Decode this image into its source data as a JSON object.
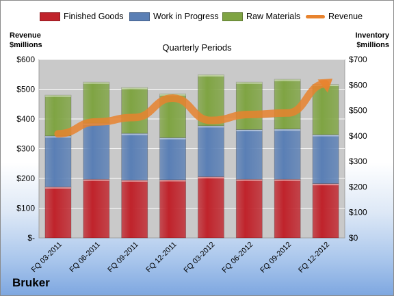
{
  "chart_data": {
    "type": "bar",
    "stacked": true,
    "subtitle": "Quarterly Periods",
    "company": "Bruker",
    "categories": [
      "FQ 03-2011",
      "FQ 06-2011",
      "FQ 09-2011",
      "FQ 12-2011",
      "FQ 03-2012",
      "FQ 06-2012",
      "FQ 09-2012",
      "FQ 12-2012"
    ],
    "series": [
      {
        "name": "Finished Goods",
        "axis": "right",
        "color": "#c0232b",
        "values": [
          200,
          230,
          227,
          228,
          240,
          230,
          230,
          213
        ]
      },
      {
        "name": "Work in Progress",
        "axis": "right",
        "color": "#5a7fb5",
        "values": [
          200,
          220,
          183,
          165,
          200,
          195,
          197,
          192
        ]
      },
      {
        "name": "Raw Materials",
        "axis": "right",
        "color": "#7fa443",
        "values": [
          160,
          161,
          180,
          172,
          200,
          186,
          195,
          197
        ]
      },
      {
        "name": "Revenue",
        "type": "line",
        "axis": "left",
        "color": "#e8832e",
        "values": [
          350,
          390,
          405,
          470,
          395,
          415,
          420,
          518
        ]
      }
    ],
    "left_axis": {
      "title_line1": "Revenue",
      "title_line2": "$millions",
      "ylim": [
        0,
        600
      ],
      "ticks": [
        "$-",
        "$100",
        "$200",
        "$300",
        "$400",
        "$500",
        "$600"
      ]
    },
    "right_axis": {
      "title_line1": "Inventory",
      "title_line2": "$millions",
      "ylim": [
        0,
        700
      ],
      "ticks": [
        "$0",
        "$100",
        "$200",
        "$300",
        "$400",
        "$500",
        "$600",
        "$700"
      ]
    },
    "grid": true,
    "legend_position": "top"
  }
}
